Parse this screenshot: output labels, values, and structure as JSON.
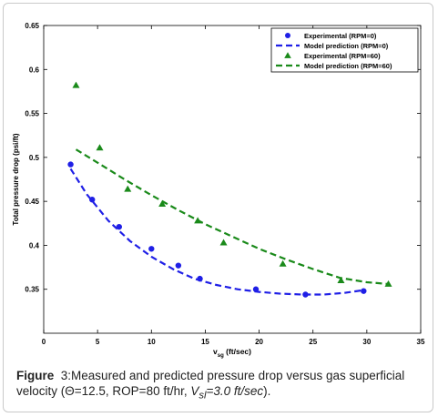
{
  "chart_data": {
    "type": "scatter",
    "xlabel_main": "v",
    "xlabel_sub": "sg",
    "xlabel_unit": " (ft/sec)",
    "ylabel": "Total pressure drop (psi/ft)",
    "xlim": [
      0,
      35
    ],
    "ylim": [
      0.3,
      0.65
    ],
    "x_ticks": [
      0,
      5,
      10,
      15,
      20,
      25,
      30,
      35
    ],
    "y_ticks": [
      0.35,
      0.4,
      0.45,
      0.5,
      0.55,
      0.6,
      0.65
    ],
    "grid": false,
    "legend_position": "top-right",
    "series": [
      {
        "name": "Experimental (RPM=0)",
        "kind": "markers",
        "marker": "circle",
        "color": "#1f1fe6",
        "x": [
          2.5,
          4.5,
          7.0,
          10.0,
          12.5,
          14.5,
          19.7,
          24.3,
          29.7
        ],
        "y": [
          0.492,
          0.452,
          0.421,
          0.396,
          0.377,
          0.362,
          0.35,
          0.344,
          0.348
        ]
      },
      {
        "name": "Model prediction (RPM=0)",
        "kind": "dashed-line",
        "color": "#1f1fe6",
        "x": [
          2.5,
          4,
          6,
          8,
          10,
          12,
          14,
          16,
          18,
          20,
          22,
          24,
          26,
          28,
          29.7
        ],
        "y": [
          0.487,
          0.458,
          0.428,
          0.405,
          0.387,
          0.373,
          0.362,
          0.355,
          0.35,
          0.347,
          0.345,
          0.344,
          0.344,
          0.346,
          0.349
        ]
      },
      {
        "name": "Experimental (RPM=60)",
        "kind": "markers",
        "marker": "triangle",
        "color": "#1a8a1a",
        "x": [
          3.0,
          5.2,
          7.8,
          11.0,
          14.3,
          16.7,
          22.2,
          27.6,
          32.0
        ],
        "y": [
          0.582,
          0.511,
          0.464,
          0.447,
          0.428,
          0.403,
          0.379,
          0.36,
          0.356
        ]
      },
      {
        "name": "Model prediction (RPM=60)",
        "kind": "dashed-line",
        "color": "#1a8a1a",
        "x": [
          3.0,
          5,
          7.5,
          10,
          12.5,
          15,
          17.5,
          20,
          22.5,
          25,
          27.5,
          30,
          32.0
        ],
        "y": [
          0.509,
          0.494,
          0.475,
          0.457,
          0.44,
          0.424,
          0.41,
          0.396,
          0.384,
          0.373,
          0.363,
          0.358,
          0.356
        ]
      }
    ]
  },
  "caption": {
    "label": "Figure",
    "number": "3:",
    "text1": "Measured and predicted pressure drop versus gas superficial velocity (",
    "theta": "Θ=12.5, ROP=80 ft/hr, ",
    "vsl_v": "V",
    "vsl_sub": "sl",
    "vsl_rest": "=3.0 ft/sec",
    "text2": ")."
  }
}
